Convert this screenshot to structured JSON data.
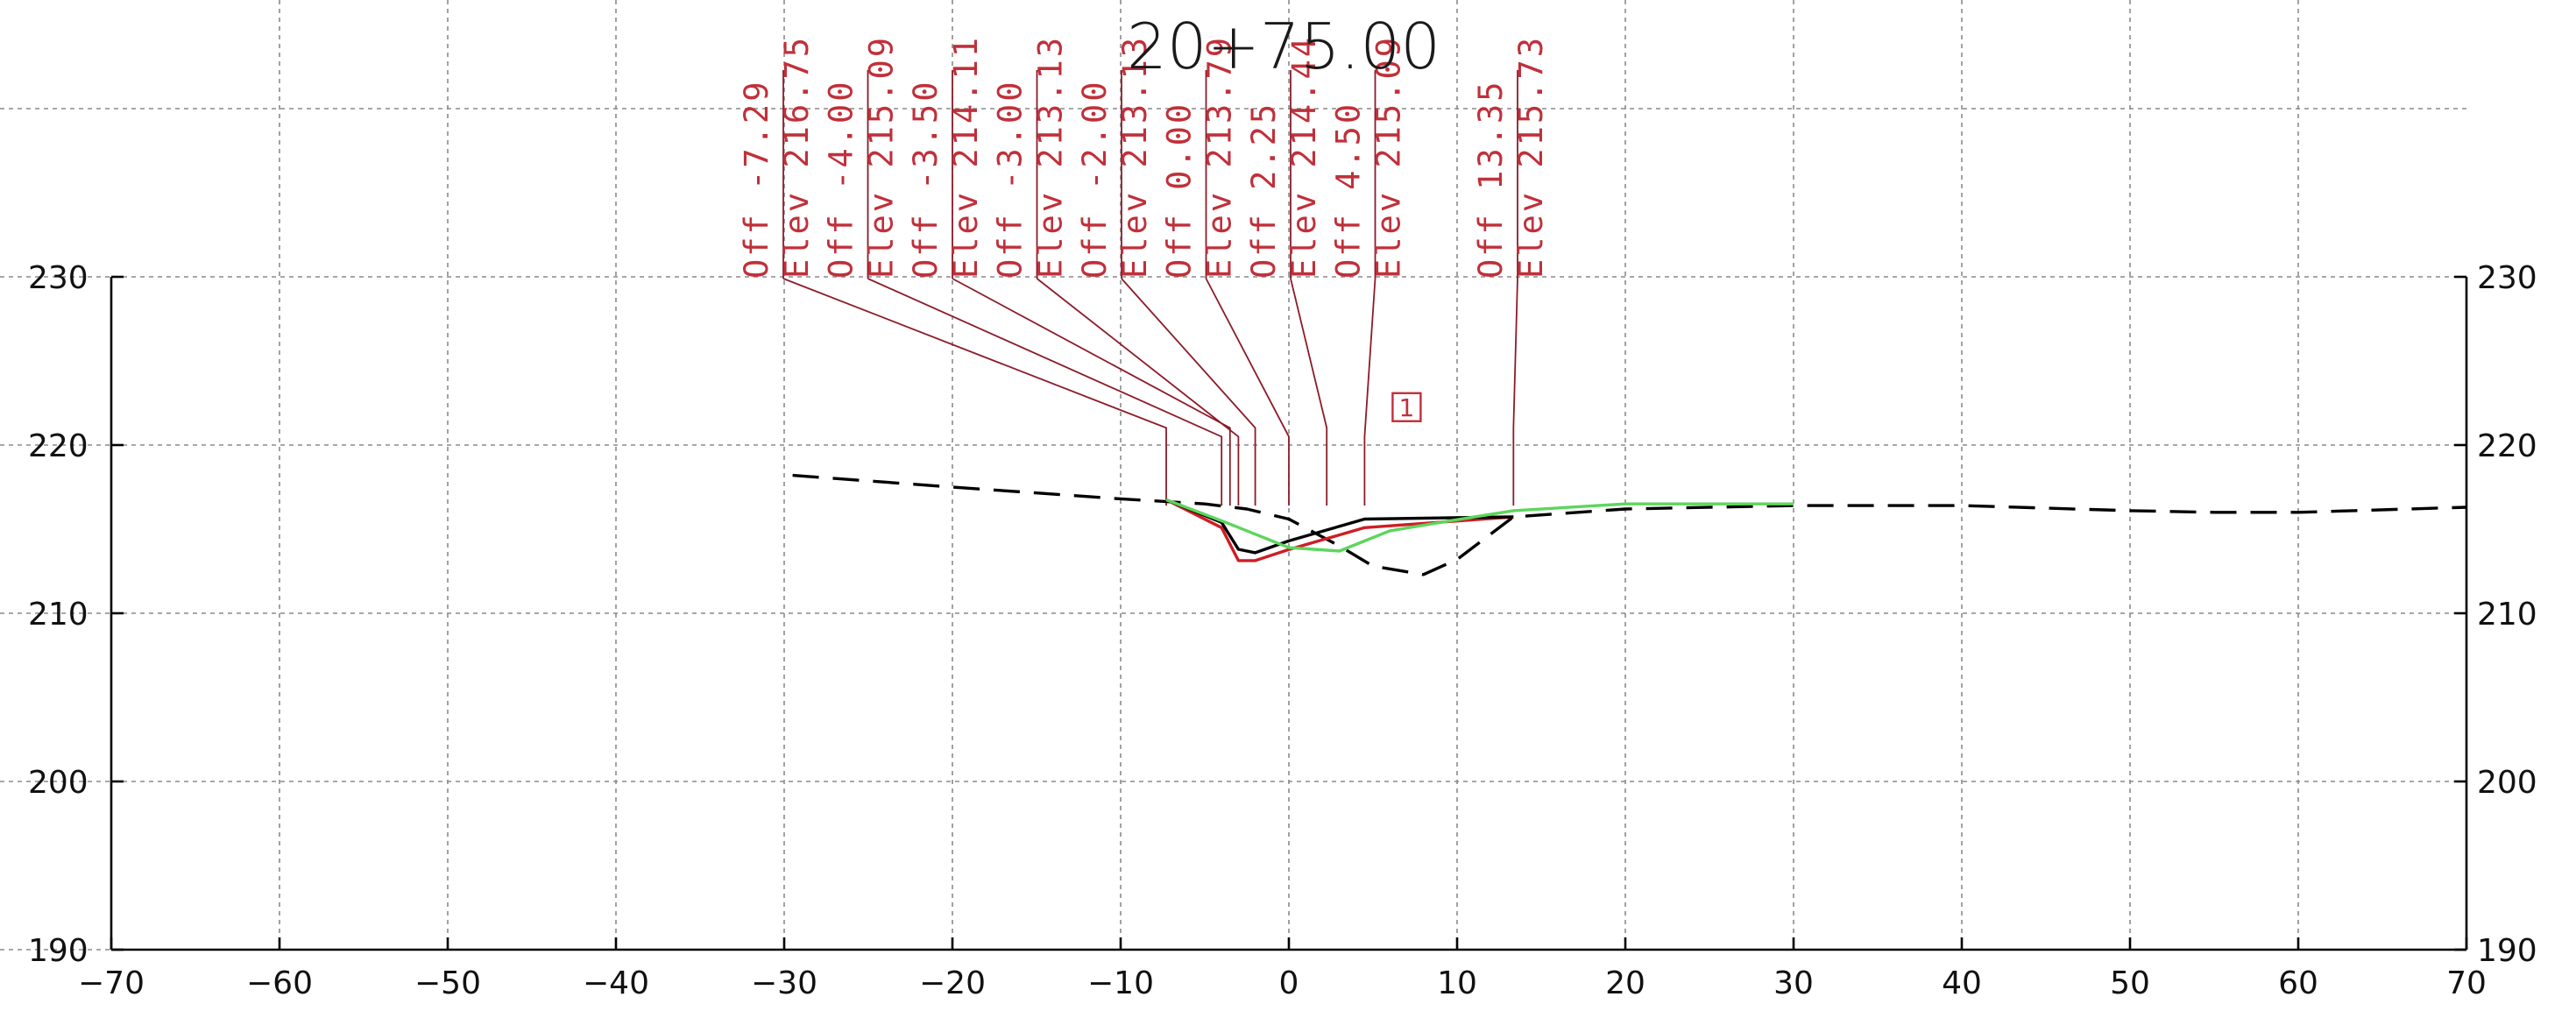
{
  "chart_data": {
    "type": "line",
    "title": "20+75.00",
    "xlabel": "",
    "ylabel": "",
    "xlim": [
      -70,
      70
    ],
    "ylim": [
      190,
      240
    ],
    "grid": true,
    "x_ticks": [
      -70,
      -60,
      -50,
      -40,
      -30,
      -20,
      -10,
      0,
      10,
      20,
      30,
      40,
      50,
      60,
      70
    ],
    "y_ticks": [
      190,
      200,
      210,
      220,
      230
    ],
    "x_tick_labels": [
      "−70",
      "−60",
      "−50",
      "−40",
      "−30",
      "−20",
      "−10",
      "0",
      "10",
      "20",
      "30",
      "40",
      "50",
      "60",
      "70"
    ],
    "y_tick_labels": [
      "190",
      "200",
      "210",
      "220",
      "230"
    ],
    "series": [
      {
        "color": "#000000",
        "dash": "dashed",
        "x": [
          -29.5,
          -20,
          -10,
          -5,
          -2.5,
          0,
          3,
          5,
          8,
          10,
          13.35,
          20,
          30,
          40,
          50,
          55,
          60,
          70
        ],
        "y": [
          218.2,
          217.5,
          216.8,
          216.5,
          216.2,
          215.6,
          214.0,
          212.8,
          212.3,
          213.2,
          215.73,
          216.2,
          216.4,
          216.4,
          216.1,
          216.0,
          216.0,
          216.3
        ]
      },
      {
        "color": "#d01c24",
        "dash": "solid",
        "x": [
          -7.29,
          -4.0,
          -3.5,
          -3.0,
          -2.0,
          0.0,
          2.25,
          4.5,
          13.35
        ],
        "y": [
          216.75,
          215.09,
          214.11,
          213.13,
          213.13,
          213.79,
          214.44,
          215.09,
          215.73
        ]
      },
      {
        "color": "#000000",
        "dash": "solid",
        "x": [
          -7.29,
          -4.0,
          -3.0,
          -2.0,
          0.0,
          4.5,
          13.35
        ],
        "y": [
          216.75,
          215.4,
          213.8,
          213.6,
          214.3,
          215.6,
          215.73
        ]
      },
      {
        "color": "#5cd65c",
        "dash": "solid",
        "x": [
          -7.29,
          -3.5,
          -1.0,
          0.0,
          1.5,
          3.0,
          6.0,
          9.0,
          13.35,
          20.0,
          30.0
        ],
        "y": [
          216.75,
          215.3,
          214.3,
          213.9,
          213.8,
          213.7,
          214.9,
          215.4,
          216.1,
          216.5,
          216.5
        ]
      }
    ],
    "annotations": [
      {
        "x": -7.29,
        "offset_text": "Off  -7.29",
        "elev_text": "Elev  216.75"
      },
      {
        "x": -4.0,
        "offset_text": "Off  -4.00",
        "elev_text": "Elev  215.09"
      },
      {
        "x": -3.5,
        "offset_text": "Off  -3.50",
        "elev_text": "Elev  214.11"
      },
      {
        "x": -3.0,
        "offset_text": "Off  -3.00",
        "elev_text": "Elev  213.13"
      },
      {
        "x": -2.0,
        "offset_text": "Off  -2.00",
        "elev_text": "Elev  213.13"
      },
      {
        "x": 0.0,
        "offset_text": "Off  0.00",
        "elev_text": "Elev  213.79"
      },
      {
        "x": 2.25,
        "offset_text": "Off  2.25",
        "elev_text": "Elev  214.44"
      },
      {
        "x": 4.5,
        "offset_text": "Off  4.50",
        "elev_text": "Elev  215.09"
      },
      {
        "x": 13.35,
        "offset_text": "Off  13.35",
        "elev_text": "Elev  215.73"
      }
    ],
    "callout": {
      "label": "1",
      "x": 7,
      "y": 222.2
    }
  }
}
